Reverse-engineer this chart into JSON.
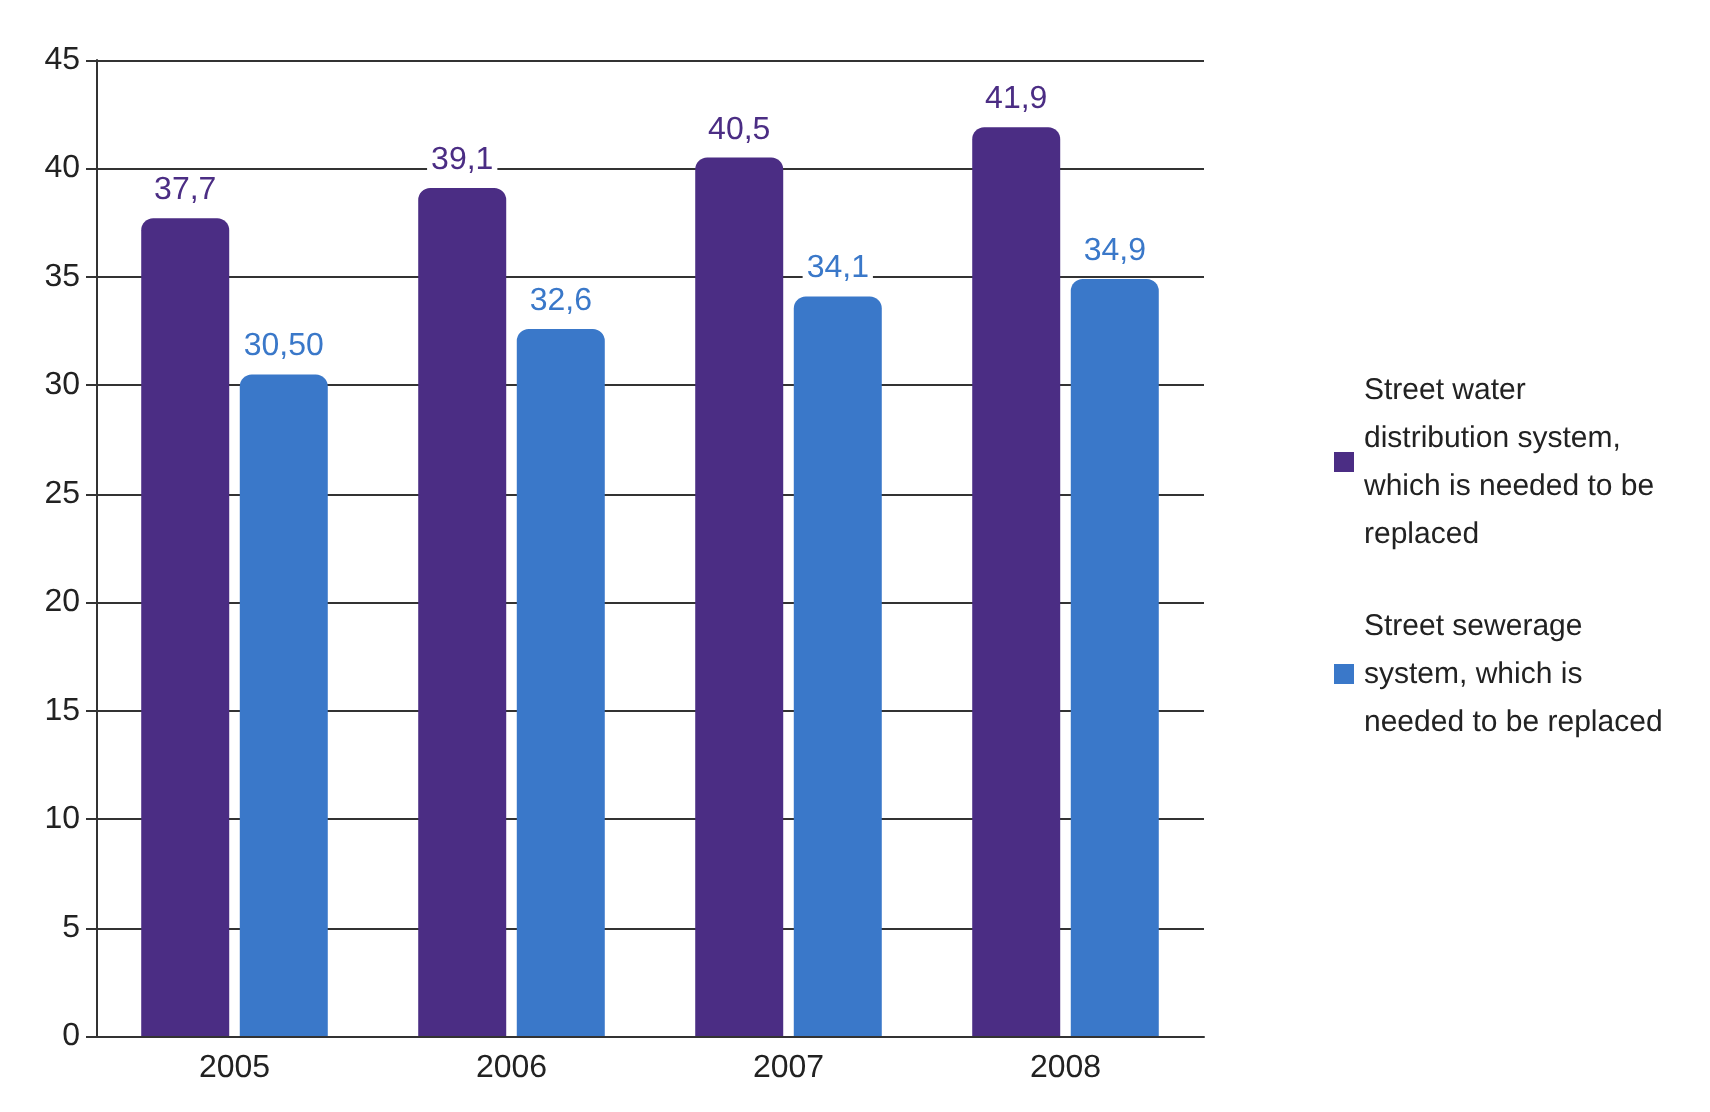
{
  "chart_data": {
    "type": "bar",
    "categories": [
      "2005",
      "2006",
      "2007",
      "2008"
    ],
    "series": [
      {
        "name": "Street water distribution system, which is needed to be replaced",
        "color": "#4b2d84",
        "values": [
          37.7,
          39.1,
          40.5,
          41.9
        ],
        "value_labels": [
          "37,7",
          "39,1",
          "40,5",
          "41,9"
        ]
      },
      {
        "name": "Street sewerage system, which is needed to be replaced",
        "color": "#3a78c9",
        "values": [
          30.5,
          32.6,
          34.1,
          34.9
        ],
        "value_labels": [
          "30,50",
          "32,6",
          "34,1",
          "34,9"
        ]
      }
    ],
    "ylim": [
      0,
      45
    ],
    "yticks": [
      0,
      5,
      10,
      15,
      20,
      25,
      30,
      35,
      40,
      45
    ],
    "grid": "y",
    "legend": "right"
  }
}
